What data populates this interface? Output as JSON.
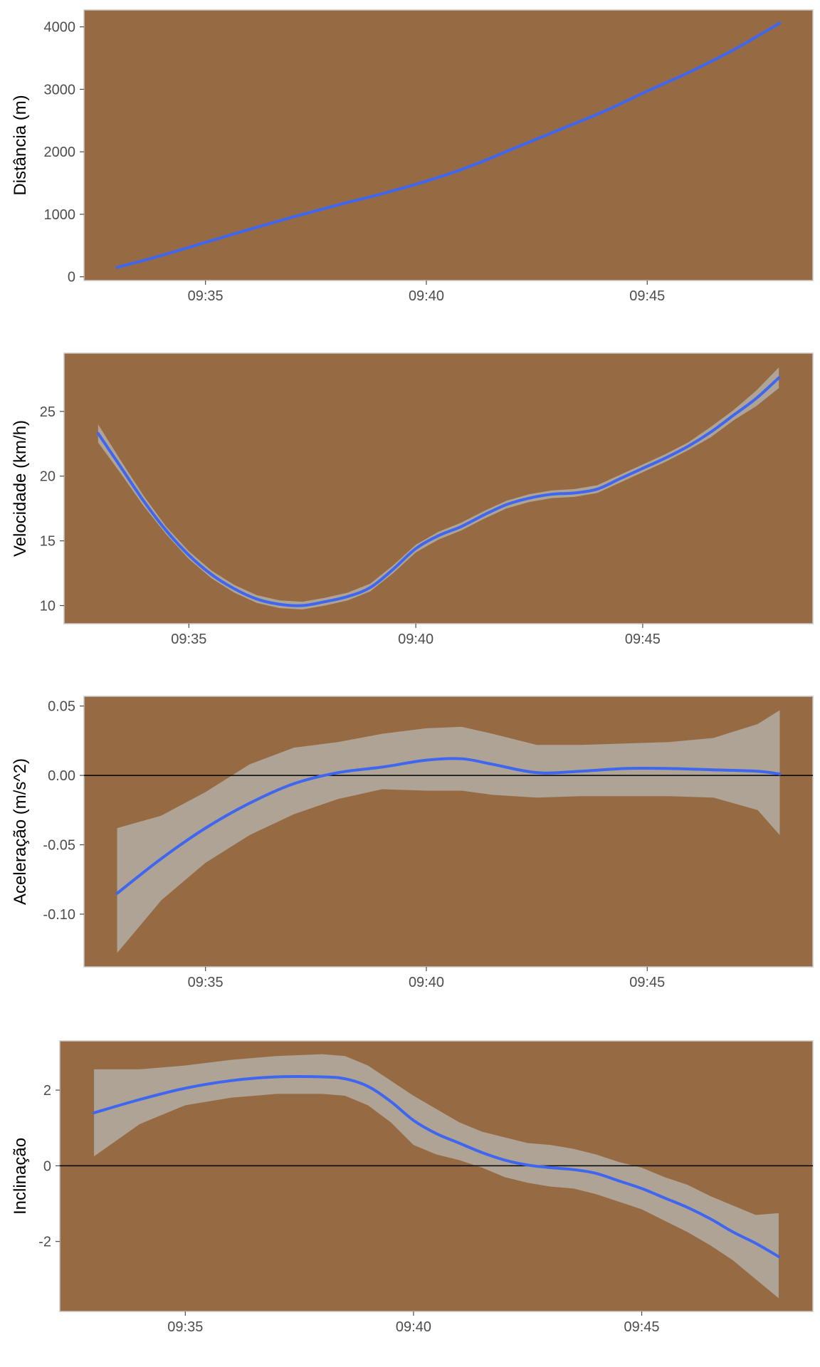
{
  "colors": {
    "panel_bg": "#966b44",
    "panel_border": "#c8c8c8",
    "line": "#3f66f0",
    "ribbon": "#b6b6b0",
    "tick_text": "#4d4d4d",
    "axis_title": "#000000",
    "zero_line": "#000000"
  },
  "chart_data": [
    {
      "type": "line",
      "title": "",
      "xlabel": "",
      "ylabel": "Distância (m)",
      "x_ticks": [
        "09:35",
        "09:40",
        "09:45"
      ],
      "x_tick_values": [
        35,
        40,
        45
      ],
      "xlim": [
        32.25,
        48.75
      ],
      "y_ticks": [
        0,
        1000,
        2000,
        3000,
        4000
      ],
      "ylim": [
        -60,
        4270
      ],
      "zero_line": false,
      "series": [
        {
          "x": [
            33,
            34,
            35,
            36,
            37,
            38,
            39,
            40,
            41,
            42,
            43,
            44,
            45,
            46,
            47,
            48
          ],
          "y": [
            150,
            340,
            550,
            760,
            960,
            1150,
            1330,
            1530,
            1770,
            2060,
            2350,
            2640,
            2970,
            3290,
            3650,
            4060
          ]
        }
      ]
    },
    {
      "type": "line",
      "title": "",
      "xlabel": "",
      "ylabel": "Velocidade (km/h)",
      "x_ticks": [
        "09:35",
        "09:40",
        "09:45"
      ],
      "x_tick_values": [
        35,
        40,
        45
      ],
      "xlim": [
        32.25,
        48.75
      ],
      "y_ticks": [
        10,
        15,
        20,
        25
      ],
      "ylim": [
        8.6,
        29.5
      ],
      "zero_line": false,
      "series": [
        {
          "x": [
            33,
            33.5,
            34,
            34.5,
            35,
            35.5,
            36,
            36.5,
            37,
            37.5,
            38,
            38.5,
            39,
            39.5,
            40,
            40.5,
            41,
            41.5,
            42,
            42.5,
            43,
            43.5,
            44,
            44.5,
            45,
            45.5,
            46,
            46.5,
            47,
            47.5,
            48
          ],
          "y": [
            23.3,
            20.7,
            18.1,
            15.8,
            13.9,
            12.4,
            11.3,
            10.5,
            10.1,
            10.0,
            10.3,
            10.7,
            11.4,
            12.8,
            14.4,
            15.4,
            16.1,
            17.0,
            17.8,
            18.3,
            18.6,
            18.7,
            19.0,
            19.8,
            20.6,
            21.4,
            22.3,
            23.4,
            24.7,
            26.0,
            27.6
          ],
          "ci_lower": [
            22.6,
            20.2,
            17.7,
            15.5,
            13.6,
            12.1,
            11.0,
            10.2,
            9.8,
            9.7,
            10.0,
            10.4,
            11.1,
            12.5,
            14.1,
            15.1,
            15.8,
            16.7,
            17.5,
            18.0,
            18.3,
            18.4,
            18.7,
            19.5,
            20.3,
            21.1,
            22.0,
            23.0,
            24.3,
            25.4,
            26.8
          ],
          "ci_upper": [
            24.0,
            21.2,
            18.5,
            16.1,
            14.2,
            12.7,
            11.6,
            10.8,
            10.4,
            10.3,
            10.6,
            11.0,
            11.7,
            13.1,
            14.7,
            15.7,
            16.4,
            17.3,
            18.1,
            18.6,
            18.9,
            19.0,
            19.3,
            20.1,
            20.9,
            21.7,
            22.6,
            23.8,
            25.1,
            26.6,
            28.4
          ]
        }
      ]
    },
    {
      "type": "line",
      "title": "",
      "xlabel": "",
      "ylabel": "Aceleração (m/s^2)",
      "x_ticks": [
        "09:35",
        "09:40",
        "09:45"
      ],
      "x_tick_values": [
        35,
        40,
        45
      ],
      "xlim": [
        32.25,
        48.75
      ],
      "y_ticks": [
        -0.1,
        -0.05,
        0.0,
        0.05
      ],
      "y_tick_labels": [
        "-0.10",
        "-0.05",
        "0.00",
        "0.05"
      ],
      "ylim": [
        -0.138,
        0.057
      ],
      "zero_line": true,
      "series": [
        {
          "x": [
            33,
            34,
            35,
            36,
            37,
            38,
            39,
            40,
            40.8,
            41.5,
            42.5,
            43.5,
            44.5,
            45.5,
            46.5,
            47.5,
            48
          ],
          "y": [
            -0.085,
            -0.06,
            -0.038,
            -0.02,
            -0.006,
            0.002,
            0.006,
            0.011,
            0.012,
            0.008,
            0.002,
            0.003,
            0.005,
            0.005,
            0.004,
            0.003,
            0.001
          ],
          "ci_lower": [
            -0.128,
            -0.09,
            -0.063,
            -0.043,
            -0.028,
            -0.017,
            -0.01,
            -0.011,
            -0.011,
            -0.014,
            -0.016,
            -0.015,
            -0.015,
            -0.015,
            -0.016,
            -0.025,
            -0.043
          ],
          "ci_upper": [
            -0.038,
            -0.029,
            -0.012,
            0.008,
            0.02,
            0.024,
            0.03,
            0.034,
            0.035,
            0.03,
            0.022,
            0.022,
            0.023,
            0.024,
            0.027,
            0.037,
            0.047
          ]
        }
      ]
    },
    {
      "type": "line",
      "title": "",
      "xlabel": "",
      "ylabel": "Inclinação",
      "x_ticks": [
        "09:35",
        "09:40",
        "09:45"
      ],
      "x_tick_values": [
        35,
        40,
        45
      ],
      "xlim": [
        32.25,
        48.75
      ],
      "y_ticks": [
        -2,
        0,
        2
      ],
      "ylim": [
        -3.85,
        3.3
      ],
      "zero_line": true,
      "series": [
        {
          "x": [
            33,
            34,
            35,
            36,
            37,
            38,
            38.5,
            39,
            39.5,
            40,
            40.5,
            41,
            41.5,
            42,
            42.5,
            43,
            43.5,
            44,
            44.5,
            45,
            45.5,
            46,
            46.5,
            47,
            47.5,
            48
          ],
          "y": [
            1.4,
            1.75,
            2.05,
            2.25,
            2.35,
            2.35,
            2.3,
            2.1,
            1.7,
            1.2,
            0.85,
            0.6,
            0.35,
            0.15,
            0.02,
            -0.05,
            -0.1,
            -0.2,
            -0.4,
            -0.6,
            -0.85,
            -1.1,
            -1.4,
            -1.75,
            -2.05,
            -2.4
          ],
          "ci_lower": [
            0.25,
            1.1,
            1.6,
            1.8,
            1.9,
            1.9,
            1.85,
            1.6,
            1.15,
            0.55,
            0.3,
            0.15,
            -0.05,
            -0.3,
            -0.45,
            -0.55,
            -0.6,
            -0.75,
            -0.95,
            -1.15,
            -1.45,
            -1.75,
            -2.1,
            -2.5,
            -3.0,
            -3.5
          ],
          "ci_upper": [
            2.55,
            2.55,
            2.65,
            2.8,
            2.9,
            2.95,
            2.9,
            2.65,
            2.25,
            1.85,
            1.5,
            1.15,
            0.9,
            0.75,
            0.6,
            0.55,
            0.45,
            0.3,
            0.1,
            -0.05,
            -0.3,
            -0.5,
            -0.8,
            -1.05,
            -1.3,
            -1.25
          ]
        }
      ]
    }
  ]
}
